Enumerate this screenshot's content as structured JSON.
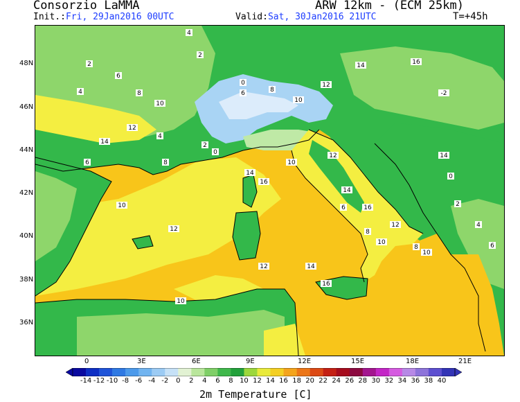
{
  "header": {
    "organization": "Consorzio LaMMA",
    "model": "ARW 12km - (ECM 25km)",
    "init_label": "Init.:",
    "init_time": "Fri, 29Jan2016 00UTC",
    "valid_label": "Valid:",
    "valid_time": "Sat, 30Jan2016 21UTC",
    "lead_time": "T=+45h"
  },
  "map": {
    "latitude_labels": [
      "48N",
      "46N",
      "44N",
      "42N",
      "40N",
      "38N",
      "36N"
    ],
    "longitude_labels": [
      "0",
      "3E",
      "6E",
      "9E",
      "12E",
      "15E",
      "18E",
      "21E"
    ],
    "colors": {
      "sea_warm": "#f8c51a",
      "sea_mild": "#f4ee41",
      "land_green": "#33b84a",
      "land_light_green": "#8ed66b",
      "land_pale": "#bfe9a6",
      "snow_light_blue": "#a9d4f4",
      "snow_pale_blue": "#dcecfb"
    },
    "contour_labels": [
      "4",
      "2",
      "0",
      "6",
      "8",
      "10",
      "12",
      "14",
      "16",
      "-2",
      "2",
      "4",
      "6",
      "8",
      "10",
      "12",
      "14",
      "6",
      "4",
      "2",
      "0",
      "8",
      "10",
      "12",
      "14",
      "16",
      "10",
      "12",
      "14",
      "16",
      "6",
      "8",
      "10",
      "12",
      "14",
      "0",
      "2",
      "4",
      "6",
      "8",
      "10",
      "12",
      "14",
      "16",
      "10"
    ]
  },
  "colorbar": {
    "title": "2m Temperature [C]",
    "ticks": [
      "-14",
      "-12",
      "-10",
      "-8",
      "-6",
      "-4",
      "-2",
      "0",
      "2",
      "4",
      "6",
      "8",
      "10",
      "12",
      "14",
      "16",
      "18",
      "20",
      "22",
      "24",
      "26",
      "28",
      "30",
      "32",
      "34",
      "36",
      "38",
      "40"
    ],
    "colors": [
      "#0a0aa0",
      "#0e2fc4",
      "#1f54d8",
      "#2f79e3",
      "#4c9aeb",
      "#71b4f0",
      "#9ccbf4",
      "#c6e1f7",
      "#e2f2d3",
      "#b9e69c",
      "#7fcf67",
      "#3fb84b",
      "#22a13b",
      "#9cd73b",
      "#e9ea3a",
      "#f4cf22",
      "#f4a41c",
      "#ec7618",
      "#dc4a15",
      "#c42014",
      "#a60c1d",
      "#8c0a40",
      "#a3168f",
      "#c326c6",
      "#d55be0",
      "#b789e6",
      "#8d73da",
      "#5d4fd0",
      "#3334b6"
    ]
  }
}
